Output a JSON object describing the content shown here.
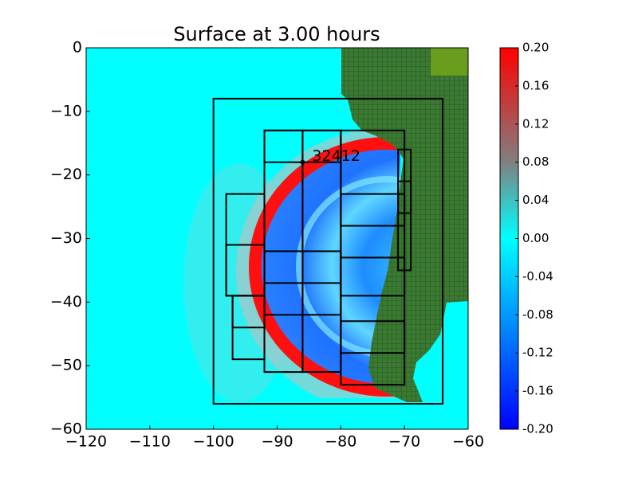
{
  "chart_data": {
    "type": "image",
    "title": "Surface at 3.00 hours",
    "xlim": [
      -120,
      -60
    ],
    "ylim": [
      -60,
      0
    ],
    "xticks": [
      {
        "value": -120,
        "label": "−120"
      },
      {
        "value": -110,
        "label": "−110"
      },
      {
        "value": -100,
        "label": "−100"
      },
      {
        "value": -90,
        "label": "−90"
      },
      {
        "value": -80,
        "label": "−80"
      },
      {
        "value": -70,
        "label": "−70"
      },
      {
        "value": -60,
        "label": "−60"
      }
    ],
    "yticks": [
      0,
      {
        "value": -10,
        "label": "−10"
      },
      {
        "value": -20,
        "label": "−20"
      },
      {
        "value": -30,
        "label": "−30"
      },
      {
        "value": -40,
        "label": "−40"
      },
      {
        "value": -50,
        "label": "−50"
      },
      {
        "value": -60,
        "label": "−60"
      }
    ],
    "colorbar": {
      "lim": [
        -0.2,
        0.2
      ],
      "ticks": [
        {
          "value": 0.2,
          "label": "0.20"
        },
        {
          "value": 0.16,
          "label": "0.16"
        },
        {
          "value": 0.12,
          "label": "0.12"
        },
        {
          "value": 0.08,
          "label": "0.08"
        },
        {
          "value": 0.04,
          "label": "0.04"
        },
        {
          "value": 0,
          "label": "0.00"
        },
        {
          "value": -0.04,
          "label": "-0.04"
        },
        {
          "value": -0.08,
          "label": "-0.08"
        },
        {
          "value": -0.12,
          "label": "-0.12"
        },
        {
          "value": -0.16,
          "label": "-0.16"
        },
        {
          "value": -0.2,
          "label": "-0.20"
        }
      ]
    },
    "station": {
      "label": "32412",
      "x": -86,
      "y": -18
    },
    "boxes": [
      [
        -100,
        -64,
        -56,
        -8
      ],
      [
        -92,
        -86,
        -51,
        -13
      ],
      [
        -86,
        -80,
        -51,
        -13
      ],
      [
        -80,
        -70,
        -53,
        -13
      ],
      [
        -92,
        -80,
        -18,
        -13
      ],
      [
        -92,
        -80,
        -42,
        -32
      ],
      [
        -92,
        -80,
        -37,
        -32
      ],
      [
        -80,
        -70,
        -28,
        -23
      ],
      [
        -80,
        -70,
        -39,
        -33
      ],
      [
        -80,
        -70,
        -48,
        -43
      ],
      [
        -98,
        -92,
        -39,
        -23
      ],
      [
        -98,
        -92,
        -39,
        -31
      ],
      [
        -97,
        -92,
        -49,
        -39
      ],
      [
        -97,
        -92,
        -44,
        -39
      ],
      [
        -71,
        -69,
        -35,
        -16
      ],
      [
        -71,
        -69,
        -26,
        -21
      ]
    ]
  }
}
